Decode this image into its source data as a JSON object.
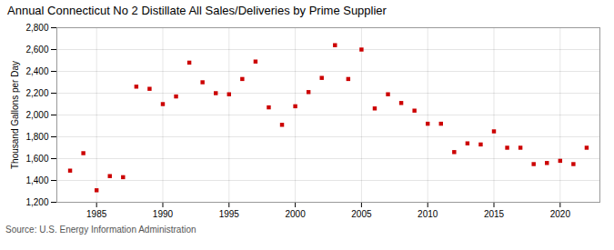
{
  "chart_data": {
    "type": "scatter",
    "title": "Annual Connecticut No 2 Distillate All Sales/Deliveries by Prime Supplier",
    "ylabel": "Thousand Gallons per Day",
    "source": "Source: U.S. Energy Information Administration",
    "x": [
      1983,
      1984,
      1985,
      1986,
      1987,
      1988,
      1989,
      1990,
      1991,
      1992,
      1993,
      1994,
      1995,
      1996,
      1997,
      1998,
      1999,
      2000,
      2001,
      2002,
      2003,
      2004,
      2005,
      2006,
      2007,
      2008,
      2009,
      2010,
      2011,
      2012,
      2013,
      2014,
      2015,
      2016,
      2017,
      2018,
      2019,
      2020,
      2021,
      2022
    ],
    "values": [
      1490,
      1650,
      1310,
      1440,
      1430,
      2260,
      2240,
      2100,
      2170,
      2480,
      2300,
      2200,
      2190,
      2330,
      2490,
      2070,
      1910,
      2080,
      2210,
      2340,
      2640,
      2330,
      2600,
      2060,
      2190,
      2110,
      2040,
      1920,
      1920,
      1660,
      1740,
      1730,
      1850,
      1700,
      1700,
      1550,
      1560,
      1580,
      1550,
      1700
    ],
    "color": "#cc0000",
    "marker": "square",
    "xlim": [
      1982,
      2023
    ],
    "ylim": [
      1200,
      2800
    ],
    "xticks": [
      1985,
      1990,
      1995,
      2000,
      2005,
      2010,
      2015,
      2020
    ],
    "yticks": [
      {
        "value": 1200,
        "label": "1,200"
      },
      {
        "value": 1400,
        "label": "1,400"
      },
      {
        "value": 1600,
        "label": "1,600"
      },
      {
        "value": 1800,
        "label": "1,800"
      },
      {
        "value": 2000,
        "label": "2,000"
      },
      {
        "value": 2200,
        "label": "2,200"
      },
      {
        "value": 2400,
        "label": "2,400"
      },
      {
        "value": 2600,
        "label": "2,600"
      },
      {
        "value": 2800,
        "label": "2,800"
      }
    ],
    "grid": true
  }
}
